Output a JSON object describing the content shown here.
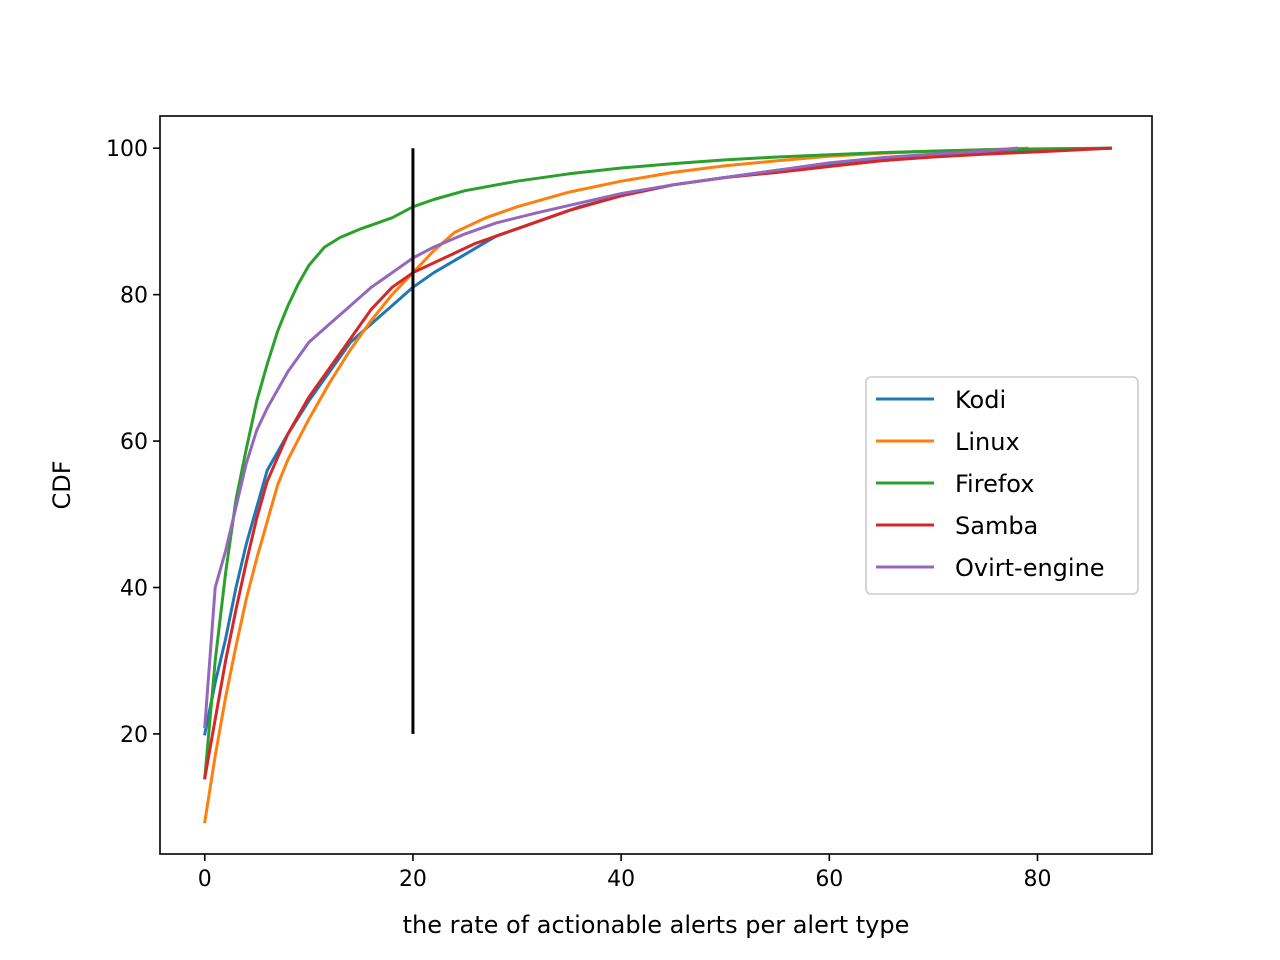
{
  "chart_data": {
    "type": "line",
    "title": "",
    "xlabel": "the rate of actionable alerts per alert type",
    "ylabel": "CDF",
    "xlim": [
      -4.3,
      91
    ],
    "ylim": [
      3.6,
      104.4
    ],
    "xticks": [
      0,
      20,
      40,
      60,
      80
    ],
    "yticks": [
      20,
      40,
      60,
      80,
      100
    ],
    "grid": false,
    "legend_position": "center-right",
    "vertical_marker": {
      "x": 20,
      "y_start": 20,
      "y_end": 100,
      "color": "#000000"
    },
    "series": [
      {
        "name": "Kodi",
        "color": "#1f77b4",
        "points": [
          [
            0,
            20
          ],
          [
            1,
            27
          ],
          [
            2,
            33
          ],
          [
            3,
            40
          ],
          [
            4,
            46
          ],
          [
            5,
            51
          ],
          [
            6,
            56
          ],
          [
            8,
            61
          ],
          [
            10,
            65.5
          ],
          [
            12,
            69.5
          ],
          [
            14,
            73.5
          ],
          [
            16,
            76
          ],
          [
            18,
            78.5
          ],
          [
            20,
            81
          ],
          [
            22,
            83
          ],
          [
            25,
            85.5
          ],
          [
            28,
            88
          ],
          [
            32,
            90
          ],
          [
            36,
            92
          ],
          [
            40,
            93.5
          ],
          [
            45,
            95
          ],
          [
            50,
            96
          ],
          [
            55,
            97
          ],
          [
            60,
            97.8
          ],
          [
            65,
            98.5
          ],
          [
            70,
            99
          ],
          [
            75,
            99.4
          ],
          [
            80,
            99.7
          ],
          [
            87,
            100
          ]
        ]
      },
      {
        "name": "Linux",
        "color": "#ff7f0e",
        "points": [
          [
            0,
            8
          ],
          [
            1,
            17
          ],
          [
            2,
            25
          ],
          [
            3,
            32
          ],
          [
            4,
            38.5
          ],
          [
            5,
            44
          ],
          [
            6,
            49
          ],
          [
            7,
            54
          ],
          [
            8,
            57.5
          ],
          [
            10,
            63
          ],
          [
            12,
            68
          ],
          [
            14,
            72.5
          ],
          [
            16,
            76.5
          ],
          [
            18,
            80
          ],
          [
            20,
            83
          ],
          [
            22,
            86
          ],
          [
            24,
            88.5
          ],
          [
            27,
            90.5
          ],
          [
            30,
            92
          ],
          [
            35,
            94
          ],
          [
            40,
            95.5
          ],
          [
            45,
            96.7
          ],
          [
            50,
            97.6
          ],
          [
            55,
            98.3
          ],
          [
            60,
            98.9
          ],
          [
            65,
            99.3
          ],
          [
            70,
            99.6
          ],
          [
            75,
            99.8
          ],
          [
            79,
            100
          ]
        ]
      },
      {
        "name": "Firefox",
        "color": "#2ca02c",
        "points": [
          [
            0,
            14
          ],
          [
            1,
            30
          ],
          [
            2,
            42
          ],
          [
            3,
            52
          ],
          [
            4,
            59
          ],
          [
            5,
            65.5
          ],
          [
            6,
            70.5
          ],
          [
            7,
            75
          ],
          [
            8,
            78.5
          ],
          [
            9,
            81.5
          ],
          [
            10,
            84
          ],
          [
            11.5,
            86.5
          ],
          [
            13,
            87.8
          ],
          [
            15,
            89
          ],
          [
            18,
            90.5
          ],
          [
            20,
            92
          ],
          [
            22,
            93
          ],
          [
            25,
            94.2
          ],
          [
            30,
            95.5
          ],
          [
            35,
            96.5
          ],
          [
            40,
            97.3
          ],
          [
            45,
            97.9
          ],
          [
            50,
            98.4
          ],
          [
            55,
            98.8
          ],
          [
            60,
            99.1
          ],
          [
            65,
            99.4
          ],
          [
            70,
            99.6
          ],
          [
            75,
            99.8
          ],
          [
            80,
            99.9
          ],
          [
            87,
            100
          ]
        ]
      },
      {
        "name": "Samba",
        "color": "#d62728",
        "points": [
          [
            0,
            14
          ],
          [
            1,
            22
          ],
          [
            2,
            30
          ],
          [
            3,
            37
          ],
          [
            4,
            43.5
          ],
          [
            5,
            49.5
          ],
          [
            6,
            54.5
          ],
          [
            8,
            61
          ],
          [
            10,
            66
          ],
          [
            12,
            70
          ],
          [
            14,
            74
          ],
          [
            16,
            78
          ],
          [
            18,
            81
          ],
          [
            20,
            83
          ],
          [
            23,
            85
          ],
          [
            26,
            87
          ],
          [
            30,
            89
          ],
          [
            35,
            91.5
          ],
          [
            40,
            93.5
          ],
          [
            45,
            95
          ],
          [
            50,
            96
          ],
          [
            55,
            96.7
          ],
          [
            60,
            97.5
          ],
          [
            65,
            98.3
          ],
          [
            70,
            98.8
          ],
          [
            75,
            99.2
          ],
          [
            80,
            99.5
          ],
          [
            87,
            100
          ]
        ]
      },
      {
        "name": "Ovirt-engine",
        "color": "#9467bd",
        "points": [
          [
            0,
            21
          ],
          [
            1,
            40
          ],
          [
            2,
            45
          ],
          [
            3,
            51
          ],
          [
            4,
            57
          ],
          [
            5,
            61.5
          ],
          [
            6,
            64.5
          ],
          [
            8,
            69.5
          ],
          [
            10,
            73.5
          ],
          [
            12,
            76
          ],
          [
            14,
            78.5
          ],
          [
            16,
            81
          ],
          [
            18,
            83
          ],
          [
            20,
            85
          ],
          [
            22,
            86.5
          ],
          [
            25,
            88.3
          ],
          [
            28,
            89.8
          ],
          [
            32,
            91.2
          ],
          [
            36,
            92.5
          ],
          [
            40,
            93.8
          ],
          [
            45,
            95
          ],
          [
            50,
            96
          ],
          [
            55,
            97
          ],
          [
            60,
            98
          ],
          [
            65,
            98.7
          ],
          [
            70,
            99.2
          ],
          [
            75,
            99.6
          ],
          [
            78,
            100
          ]
        ]
      }
    ]
  }
}
